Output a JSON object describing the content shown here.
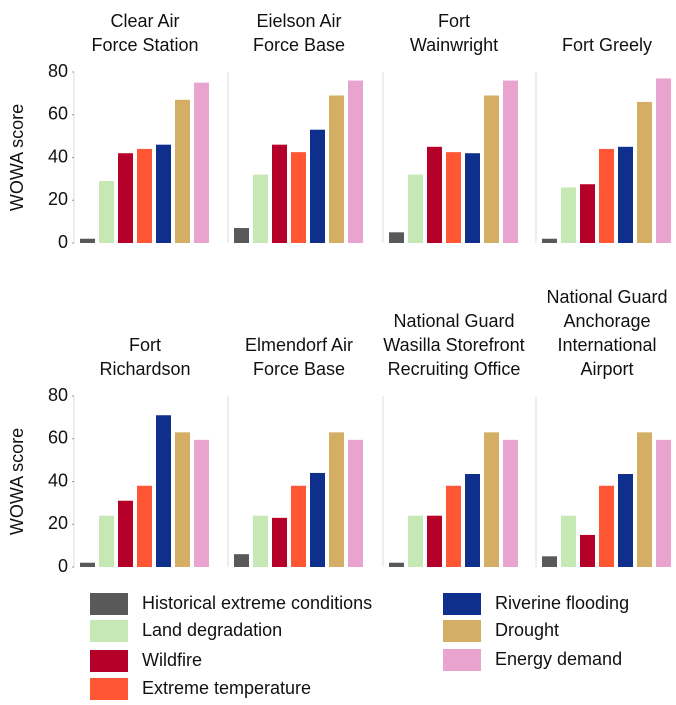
{
  "chart_data": [
    {
      "type": "bar",
      "title": [
        "Clear Air",
        "Force Station"
      ],
      "ylabel": "WOWA score",
      "values": [
        2,
        29,
        42,
        44,
        46,
        67,
        75
      ],
      "ylim": [
        0,
        80
      ],
      "yticks": [
        0,
        20,
        40,
        60,
        80
      ]
    },
    {
      "type": "bar",
      "title": [
        "Eielson Air",
        "Force Base"
      ],
      "values": [
        7,
        32,
        46,
        42.5,
        53,
        69,
        76
      ],
      "ylim": [
        0,
        80
      ]
    },
    {
      "type": "bar",
      "title": [
        "Fort",
        "Wainwright"
      ],
      "values": [
        5,
        32,
        45,
        42.5,
        42,
        69,
        76
      ],
      "ylim": [
        0,
        80
      ]
    },
    {
      "type": "bar",
      "title": [
        "Fort Greely"
      ],
      "values": [
        2,
        26,
        27.5,
        44,
        45,
        66,
        77
      ],
      "ylim": [
        0,
        80
      ]
    },
    {
      "type": "bar",
      "title": [
        "Fort",
        "Richardson"
      ],
      "ylabel": "WOWA score",
      "values": [
        2,
        24,
        31,
        38,
        71,
        63,
        59.5
      ],
      "ylim": [
        0,
        80
      ],
      "yticks": [
        0,
        20,
        40,
        60,
        80
      ]
    },
    {
      "type": "bar",
      "title": [
        "Elmendorf Air",
        "Force Base"
      ],
      "values": [
        6,
        24,
        23,
        38,
        44,
        63,
        59.5
      ],
      "ylim": [
        0,
        80
      ]
    },
    {
      "type": "bar",
      "title": [
        "National Guard",
        "Wasilla Storefront",
        "Recruiting Office"
      ],
      "values": [
        2,
        24,
        24,
        38,
        43.5,
        63,
        59.5
      ],
      "ylim": [
        0,
        80
      ]
    },
    {
      "type": "bar",
      "title": [
        "National Guard",
        "Anchorage",
        "International",
        "Airport"
      ],
      "values": [
        5,
        24,
        15,
        38,
        43.5,
        63,
        59.5
      ],
      "ylim": [
        0,
        80
      ]
    }
  ],
  "legend": [
    {
      "name": "Historical extreme conditions",
      "color": "#595959"
    },
    {
      "name": "Land degradation",
      "color": "#c6e8b4"
    },
    {
      "name": "Wildfire",
      "color": "#b5002a"
    },
    {
      "name": "Extreme temperature",
      "color": "#ff5733"
    },
    {
      "name": "Riverine flooding",
      "color": "#0f2f8c"
    },
    {
      "name": "Drought",
      "color": "#d4ae64"
    },
    {
      "name": "Energy demand",
      "color": "#e9a3cf"
    }
  ]
}
